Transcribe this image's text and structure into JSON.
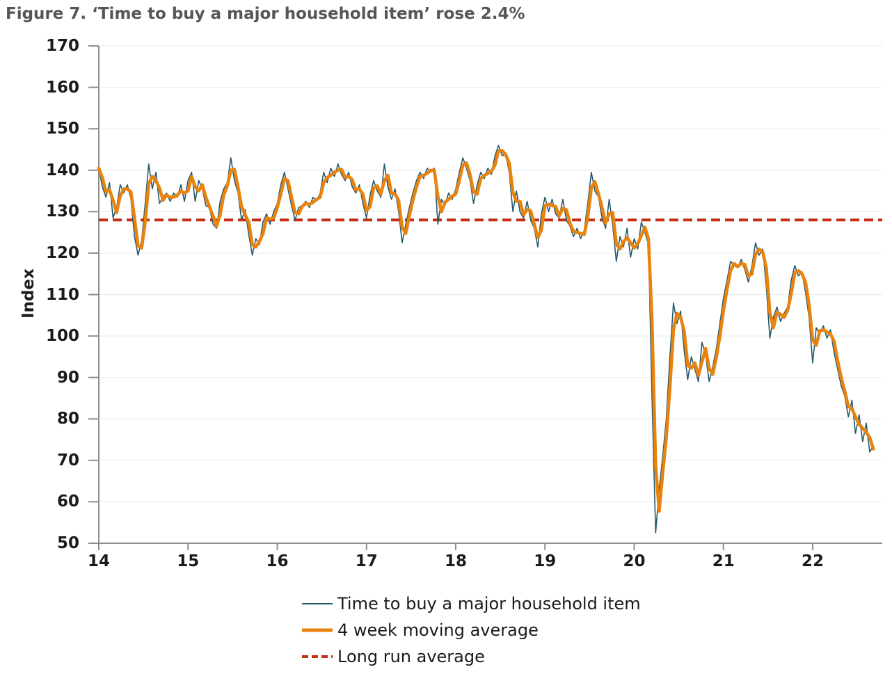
{
  "figure": {
    "title": "Figure 7. ‘Time to buy a major household item’ rose 2.4%"
  },
  "colors": {
    "title_text": "#55565A",
    "axis": "#8E8E8E",
    "gridline": "#E9EDED",
    "tick_text": "#1B1B1B",
    "weekly_line": "#26586E",
    "moving_average_line": "#E8830D",
    "long_run_average_line": "#C62D15"
  },
  "chart_data": {
    "type": "line",
    "title": "Figure 7. ‘Time to buy a major household item’ rose 2.4%",
    "xlabel": "",
    "ylabel": "Index",
    "xlim": [
      14,
      22.78
    ],
    "ylim": [
      50,
      170
    ],
    "x_ticks": [
      14,
      15,
      16,
      17,
      18,
      19,
      20,
      21,
      22
    ],
    "y_ticks": [
      170,
      160,
      150,
      140,
      130,
      120,
      110,
      100,
      90,
      80,
      70,
      60,
      50
    ],
    "grid": "horizontal only, light gray",
    "legend_position": "bottom-left",
    "long_run_average": 128,
    "series": [
      {
        "name": "Time to buy a major household item",
        "color": "#26586E",
        "x_start": 14.0,
        "x_step_years": 0.04,
        "values": [
          140.5,
          136,
          133.5,
          137,
          128.5,
          131,
          136.5,
          134.5,
          136.5,
          133,
          124,
          119.5,
          123,
          132,
          141.5,
          135.5,
          139.5,
          132,
          133.5,
          134.5,
          132.5,
          134.5,
          133.5,
          136.5,
          132.5,
          137.5,
          139.5,
          132.5,
          137.5,
          135.5,
          131.5,
          131,
          127,
          126,
          132.5,
          135.5,
          137,
          143,
          137.5,
          134.5,
          128,
          130.5,
          124.5,
          119.5,
          123.5,
          122,
          127.5,
          129.5,
          127,
          130,
          132,
          136.5,
          139.5,
          135.5,
          131.5,
          128,
          131,
          131.5,
          132.5,
          131,
          133.5,
          132.5,
          134.5,
          139.5,
          137,
          140.5,
          138.5,
          141.5,
          139,
          137.5,
          139.5,
          136,
          134.5,
          136.5,
          132,
          128.5,
          134,
          137.5,
          135,
          133.5,
          141.5,
          136,
          133,
          135.5,
          130,
          122.5,
          127,
          131,
          134.5,
          137.5,
          139.5,
          138,
          140.5,
          139.5,
          140.5,
          127,
          133,
          131.5,
          134.5,
          133,
          135.5,
          139.5,
          143,
          140.5,
          137.5,
          132,
          136.5,
          139.5,
          138,
          140.5,
          139,
          143.5,
          146,
          143.5,
          144,
          139.5,
          130,
          135,
          130,
          128.5,
          132.5,
          128,
          126,
          121.5,
          129.5,
          133.5,
          130,
          133,
          129.5,
          128.5,
          133,
          128,
          126.5,
          124,
          126,
          123.5,
          125.5,
          132,
          139.5,
          135,
          133.5,
          128.5,
          126,
          133,
          126.5,
          118,
          124,
          121.5,
          126,
          119,
          123.5,
          121,
          127.5,
          125,
          122,
          85,
          52.5,
          63,
          71,
          80,
          95,
          108,
          103,
          106,
          96.5,
          89.5,
          95,
          92,
          89,
          98.5,
          95.5,
          89,
          92.5,
          97,
          103,
          109,
          113.5,
          118,
          117,
          116.5,
          118.5,
          116,
          113,
          117,
          122.5,
          119.5,
          121,
          112,
          99.5,
          104.5,
          107,
          103.5,
          105.5,
          107,
          113.5,
          117,
          114.5,
          115.5,
          110.5,
          104.5,
          93.5,
          102,
          100.5,
          102.5,
          99.5,
          101.5,
          96,
          92,
          88,
          85.5,
          80.5,
          84.5,
          76.5,
          81,
          74.5,
          79,
          72,
          73.5
        ]
      },
      {
        "name": "4 week moving average",
        "color": "#E8830D",
        "derived": "4-week moving average of the weekly series"
      },
      {
        "name": "Long run average",
        "color": "#C62D15",
        "style": "dashed",
        "value": 128
      }
    ]
  },
  "legend": {
    "items": [
      {
        "label": "Time to buy a major household item",
        "swatch": "thin-solid-line"
      },
      {
        "label": "4 week moving average",
        "swatch": "thick-solid-line"
      },
      {
        "label": "Long run average",
        "swatch": "dashed-line"
      }
    ]
  }
}
